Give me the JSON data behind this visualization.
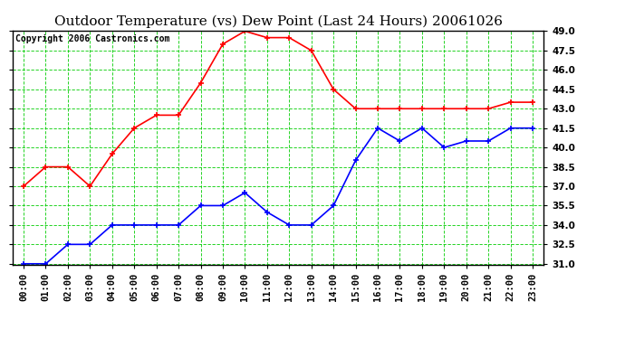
{
  "title": "Outdoor Temperature (vs) Dew Point (Last 24 Hours) 20061026",
  "copyright": "Copyright 2006 Castronics.com",
  "hours": [
    "00:00",
    "01:00",
    "02:00",
    "03:00",
    "04:00",
    "05:00",
    "06:00",
    "07:00",
    "08:00",
    "09:00",
    "10:00",
    "11:00",
    "12:00",
    "13:00",
    "14:00",
    "15:00",
    "16:00",
    "17:00",
    "18:00",
    "19:00",
    "20:00",
    "21:00",
    "22:00",
    "23:00"
  ],
  "temp": [
    37.0,
    38.5,
    38.5,
    37.0,
    39.5,
    41.5,
    42.5,
    42.5,
    45.0,
    48.0,
    49.0,
    48.5,
    48.5,
    47.5,
    44.5,
    43.0,
    43.0,
    43.0,
    43.0,
    43.0,
    43.0,
    43.0,
    43.5,
    43.5
  ],
  "dew": [
    31.0,
    31.0,
    32.5,
    32.5,
    34.0,
    34.0,
    34.0,
    34.0,
    35.5,
    35.5,
    36.5,
    35.0,
    34.0,
    34.0,
    35.5,
    39.0,
    41.5,
    40.5,
    41.5,
    40.0,
    40.5,
    40.5,
    41.5,
    41.5
  ],
  "temp_color": "#ff0000",
  "dew_color": "#0000ff",
  "bg_color": "#ffffff",
  "plot_bg_color": "#ffffff",
  "grid_color": "#00cc00",
  "marker": "+",
  "markersize": 5,
  "markeredgewidth": 1.2,
  "linewidth": 1.2,
  "ylim": [
    31.0,
    49.0
  ],
  "yticks": [
    31.0,
    32.5,
    34.0,
    35.5,
    37.0,
    38.5,
    40.0,
    41.5,
    43.0,
    44.5,
    46.0,
    47.5,
    49.0
  ],
  "title_fontsize": 11,
  "copyright_fontsize": 7,
  "tick_fontsize": 7.5,
  "border_color": "#000000"
}
